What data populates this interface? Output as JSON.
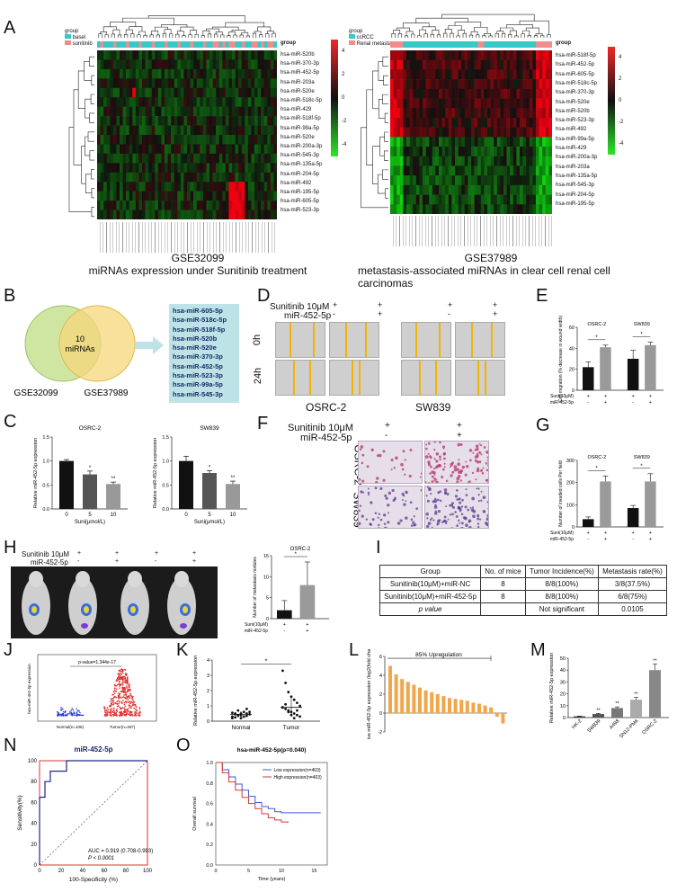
{
  "panels": {
    "A": "A",
    "B": "B",
    "C": "C",
    "D": "D",
    "E": "E",
    "F": "F",
    "G": "G",
    "H": "H",
    "I": "I",
    "J": "J",
    "K": "K",
    "L": "L",
    "M": "M",
    "N": "N",
    "O": "O"
  },
  "A": {
    "left": {
      "legend_title": "group",
      "legend_items": [
        "basel",
        "sunitinib"
      ],
      "group_label": "group",
      "mirnas": [
        "hsa-miR-520b",
        "hsa-miR-370-3p",
        "hsa-miR-452-5p",
        "hsa-miR-203a",
        "hsa-miR-520e",
        "hsa-miR-518c-5p",
        "hsa-miR-429",
        "hsa-miR-518f-5p",
        "hsa-miR-99a-5p",
        "hsa-miR-520e",
        "hsa-miR-200a-3p",
        "hsa-miR-545-3p",
        "hsa-miR-135a-5p",
        "hsa-miR-204-5p",
        "hsa-miR-492",
        "hsa-miR-195-5p",
        "hsa-miR-605-5p",
        "hsa-miR-523-3p"
      ],
      "scale": [
        "4",
        "2",
        "0",
        "-2",
        "-4"
      ],
      "id": "GSE32099",
      "caption": "miRNAs expression under Sunitinib treatment"
    },
    "right": {
      "legend_title": "group",
      "legend_items": [
        "ccRCC",
        "Renal metastases"
      ],
      "group_label": "group",
      "mirnas": [
        "hsa-miR-518f-5p",
        "hsa-miR-452-5p",
        "hsa-miR-605-5p",
        "hsa-miR-518c-5p",
        "hsa-miR-370-3p",
        "hsa-miR-520e",
        "hsa-miR-520b",
        "hsa-miR-523-3p",
        "hsa-miR-492",
        "hsa-miR-99a-5p",
        "hsa-miR-429",
        "hsa-miR-200a-3p",
        "hsa-miR-203a",
        "hsa-miR-135a-5p",
        "hsa-miR-545-3p",
        "hsa-miR-204-5p",
        "hsa-miR-195-5p"
      ],
      "scale": [
        "4",
        "2",
        "0",
        "-2",
        "-4"
      ],
      "id": "GSE37989",
      "caption": "metastasis-associated miRNAs in clear cell renal cell carcinomas"
    }
  },
  "B": {
    "center": "10\nmiRNAs",
    "center1": "10",
    "center2": "miRNAs",
    "left": "GSE32099",
    "right": "GSE37989",
    "list": [
      "hsa-miR-605-5p",
      "hsa-miR-518c-5p",
      "hsa-miR-518f-5p",
      "hsa-miR-520b",
      "hsa-miR-520e",
      "hsa-miR-370-3p",
      "hsa-miR-452-5p",
      "hsa-miR-523-3p",
      "hsa-miR-99a-5p",
      "hsa-miR-545-3p"
    ]
  },
  "D": {
    "row1": "Sunitinib 10μM",
    "row2": "miR-452-5p",
    "signs1": [
      "+",
      "+",
      "+",
      "+"
    ],
    "signs2": [
      "-",
      "+",
      "-",
      "+"
    ],
    "t0": "0h",
    "t24": "24h",
    "cells": [
      "OSRC-2",
      "SW839"
    ]
  },
  "F": {
    "row1": "Sunitinib 10μM",
    "row2": "miR-452-5p",
    "signs1": [
      "+",
      "+"
    ],
    "signs2": [
      "-",
      "+"
    ],
    "cells": [
      "OSRC-2",
      "SW839"
    ]
  },
  "H": {
    "row1": "Sunitinib 10μM",
    "row2": "miR-452-5p",
    "signs1": [
      "+",
      "+",
      "+",
      "+"
    ],
    "signs2": [
      "-",
      "+",
      "-",
      "+"
    ]
  },
  "I": {
    "headers": [
      "Group",
      "No. of mice",
      "Tumor Incidence(%)",
      "Metastasis rate(%)"
    ],
    "rows": [
      [
        "Sunitinib(10μM)+miR-NC",
        "8",
        "8/8(100%)",
        "3/8(37.5%)"
      ],
      [
        "Sunitinib(10μM)+miR-452-5p",
        "8",
        "8/8(100%)",
        "6/8(75%)"
      ],
      [
        "p value",
        "",
        "Not significant",
        "0.0105"
      ]
    ]
  },
  "chart_data": [
    {
      "id": "C1",
      "type": "bar",
      "title": "OSRC-2",
      "categories": [
        "0",
        "5",
        "10"
      ],
      "values": [
        1.0,
        0.72,
        0.52
      ],
      "errors": [
        0.03,
        0.07,
        0.04
      ],
      "sig": [
        "",
        "*",
        "**"
      ],
      "xlabel": "Suni(μmol/L)",
      "ylabel": "Relative miR-452-5p expression",
      "ylim": [
        0,
        1.5
      ],
      "yticks": [
        "0.0",
        "0.5",
        "1.0",
        "1.5"
      ],
      "colors": [
        "#111111",
        "#555555",
        "#999999"
      ]
    },
    {
      "id": "C2",
      "type": "bar",
      "title": "SW839",
      "categories": [
        "0",
        "5",
        "10"
      ],
      "values": [
        1.0,
        0.75,
        0.52
      ],
      "errors": [
        0.1,
        0.05,
        0.06
      ],
      "sig": [
        "",
        "*",
        "**"
      ],
      "xlabel": "Suni(μmol/L)",
      "ylabel": "Relative miR-452-5p expression",
      "ylim": [
        0,
        1.5
      ],
      "yticks": [
        "0.0",
        "0.5",
        "1.0",
        "1.5"
      ],
      "colors": [
        "#111111",
        "#555555",
        "#999999"
      ]
    },
    {
      "id": "E",
      "type": "bar",
      "groups": [
        "OSRC-2",
        "SW839"
      ],
      "values": [
        22,
        41,
        30,
        43
      ],
      "errors": [
        5,
        2,
        8,
        3
      ],
      "ylabel": "Cell migration (% decrease in wound width)",
      "ylim": [
        0,
        60
      ],
      "yticks": [
        "0",
        "20",
        "40",
        "60"
      ],
      "xrow1": "Suni(10μM)",
      "xrow2": "miR-452-5p",
      "signs1": [
        "+",
        "+",
        "+",
        "+"
      ],
      "signs2": [
        "-",
        "+",
        "-",
        "+"
      ],
      "sig": "*"
    },
    {
      "id": "G",
      "type": "bar",
      "groups": [
        "OSRC-2",
        "SW839"
      ],
      "values": [
        35,
        205,
        85,
        205
      ],
      "errors": [
        10,
        25,
        12,
        35
      ],
      "ylabel": "Number of invaded cells Per field",
      "ylim": [
        0,
        300
      ],
      "yticks": [
        "0",
        "100",
        "200",
        "300"
      ],
      "xrow1": "Suni(10μM)",
      "xrow2": "miR-452-5p",
      "signs1": [
        "+",
        "+",
        "+",
        "+"
      ],
      "signs2": [
        "-",
        "+",
        "-",
        "+"
      ],
      "sig": "*"
    },
    {
      "id": "H",
      "type": "bar",
      "title": "OSRC-2",
      "values": [
        2,
        8
      ],
      "errors": [
        2.3,
        5.5
      ],
      "ylabel": "Number of metastasis nodules",
      "ylim": [
        0,
        15
      ],
      "yticks": [
        "0",
        "5",
        "10",
        "15"
      ],
      "xrow1": "Suni(10μM)",
      "xrow2": "miR-452-5p",
      "signs1": [
        "+",
        "+"
      ],
      "signs2": [
        "-",
        "+"
      ],
      "sig": "*"
    },
    {
      "id": "J",
      "type": "scatter",
      "annotation": "p-value=1.344e-17",
      "categories": [
        "Normal(n=106)",
        "Tumor(n=457)"
      ],
      "ylabel": "hsa-miR-452-5p expression"
    },
    {
      "id": "K",
      "type": "scatter",
      "categories": [
        "Normal",
        "Tumor"
      ],
      "ylabel": "Relative miR-452-5p expression",
      "ylim": [
        0,
        4
      ],
      "yticks": [
        "0",
        "1",
        "2",
        "3",
        "4"
      ],
      "sig": "*"
    },
    {
      "id": "L",
      "type": "bar",
      "annotation": "85% Upregulation",
      "values": [
        5.0,
        4.1,
        3.6,
        3.3,
        3.0,
        2.7,
        2.4,
        2.2,
        2.0,
        1.8,
        1.6,
        1.5,
        1.4,
        1.3,
        1.1,
        1.0,
        0.8,
        0.6,
        -0.4,
        -1.1
      ],
      "ylabel": "Relative miR-452-5p expression (log2(fold change))",
      "ylim": [
        -2,
        6
      ],
      "yticks": [
        "-2",
        "0",
        "2",
        "4",
        "6"
      ]
    },
    {
      "id": "M",
      "type": "bar",
      "categories": [
        "HK-2",
        "SW839",
        "A498",
        "SN12-PM6",
        "OSRC-2"
      ],
      "values": [
        1.0,
        3.0,
        8.0,
        15.0,
        40.0
      ],
      "errors": [
        0.3,
        0.5,
        1.0,
        2.0,
        5.0
      ],
      "sig": [
        "",
        "**",
        "**",
        "**",
        "**"
      ],
      "ylabel": "Relative miR-452-5p expression",
      "ylim": [
        0,
        50
      ],
      "yticks": [
        "0",
        "10",
        "20",
        "30",
        "40",
        "50"
      ]
    },
    {
      "id": "N",
      "type": "line",
      "title": "miR-452-5p",
      "xlabel": "100-Specificity (%)",
      "ylabel": "Sensitivity(%)",
      "xticks": [
        "0",
        "20",
        "40",
        "60",
        "80",
        "100"
      ],
      "yticks": [
        "0",
        "20",
        "40",
        "60",
        "80",
        "100"
      ],
      "auc": "AUC = 0.919 (0.708-0.993)",
      "p": "P < 0.0001",
      "x": [
        0,
        0,
        5,
        5,
        10,
        10,
        25,
        25,
        100
      ],
      "y": [
        0,
        65,
        65,
        80,
        80,
        90,
        90,
        100,
        100
      ]
    },
    {
      "id": "O",
      "type": "line",
      "title": "hsa-miR-452-5p(p=0.040)",
      "xlabel": "Time (years)",
      "ylabel": "Overall survival",
      "xticks": [
        "0",
        "5",
        "10",
        "15"
      ],
      "yticks": [
        "0.0",
        "0.2",
        "0.4",
        "0.6",
        "0.8",
        "1.0"
      ],
      "series": [
        {
          "name": "Low expression(n=403)",
          "color": "#3a5bd0",
          "x": [
            0,
            1,
            2,
            3,
            4,
            5,
            6,
            7,
            8,
            9,
            10,
            16
          ],
          "y": [
            1.0,
            0.93,
            0.86,
            0.79,
            0.73,
            0.67,
            0.61,
            0.57,
            0.55,
            0.52,
            0.51,
            0.51
          ]
        },
        {
          "name": "High expression(n=403)",
          "color": "#d33a3a",
          "x": [
            0,
            1,
            2,
            3,
            4,
            5,
            6,
            7,
            8,
            9,
            10,
            11
          ],
          "y": [
            1.0,
            0.9,
            0.81,
            0.73,
            0.66,
            0.6,
            0.55,
            0.5,
            0.46,
            0.44,
            0.42,
            0.41
          ]
        }
      ]
    }
  ]
}
